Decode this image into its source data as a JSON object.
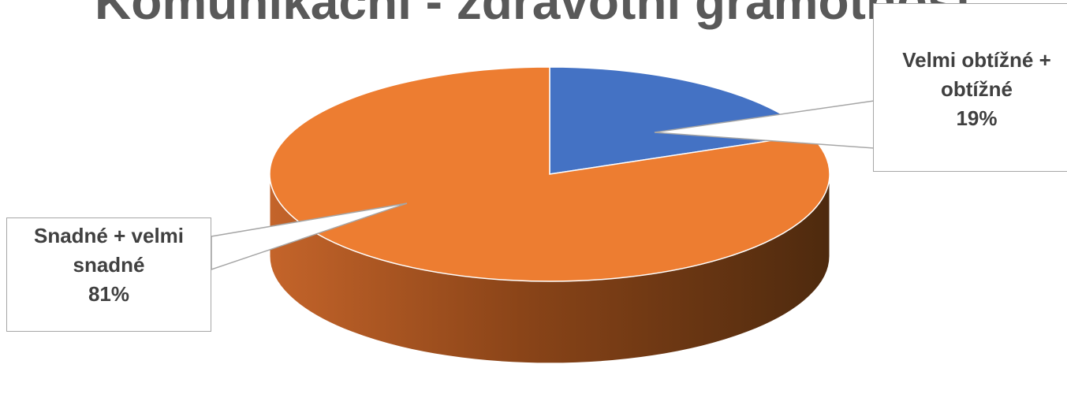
{
  "chart_data": {
    "type": "pie",
    "title": "Komunikační - zdravotní gramotnost",
    "slices": [
      {
        "name": "Velmi obtížné + obtížné",
        "percent": 19,
        "label_lines": [
          "Velmi obtížné +",
          "obtížné",
          "19%"
        ],
        "color": "#4472C4"
      },
      {
        "name": "Snadné + velmi snadné",
        "percent": 81,
        "label_lines": [
          "Snadné + velmi",
          "snadné",
          "81%"
        ],
        "color": "#ED7D31"
      }
    ],
    "style": "3d"
  }
}
